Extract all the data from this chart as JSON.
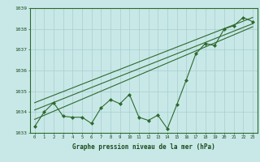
{
  "x": [
    0,
    1,
    2,
    3,
    4,
    5,
    6,
    7,
    8,
    9,
    10,
    11,
    12,
    13,
    14,
    15,
    16,
    17,
    18,
    19,
    20,
    21,
    22,
    23
  ],
  "main_line": [
    1033.3,
    1034.0,
    1034.45,
    1033.8,
    1033.75,
    1033.75,
    1033.45,
    1034.2,
    1034.6,
    1034.4,
    1034.85,
    1033.75,
    1033.6,
    1033.85,
    1033.2,
    1034.35,
    1035.55,
    1036.8,
    1037.3,
    1037.2,
    1038.0,
    1038.15,
    1038.55,
    1038.35
  ],
  "trend1_x": [
    0,
    23
  ],
  "trend1_y": [
    1033.65,
    1038.1
  ],
  "trend2_x": [
    0,
    23
  ],
  "trend2_y": [
    1034.1,
    1038.25
  ],
  "trend3_x": [
    0,
    23
  ],
  "trend3_y": [
    1034.45,
    1038.55
  ],
  "ylim_min": 1033.0,
  "ylim_max": 1039.0,
  "yticks": [
    1033,
    1034,
    1035,
    1036,
    1037,
    1038,
    1039
  ],
  "xticks": [
    0,
    1,
    2,
    3,
    4,
    5,
    6,
    7,
    8,
    9,
    10,
    11,
    12,
    13,
    14,
    15,
    16,
    17,
    18,
    19,
    20,
    21,
    22,
    23
  ],
  "xlabel": "Graphe pression niveau de la mer (hPa)",
  "line_color": "#2d6a2d",
  "bg_color": "#c8e8e8",
  "grid_color": "#a8cece",
  "text_color": "#1a4a1a",
  "bottom_bar_color": "#2d6a2d"
}
